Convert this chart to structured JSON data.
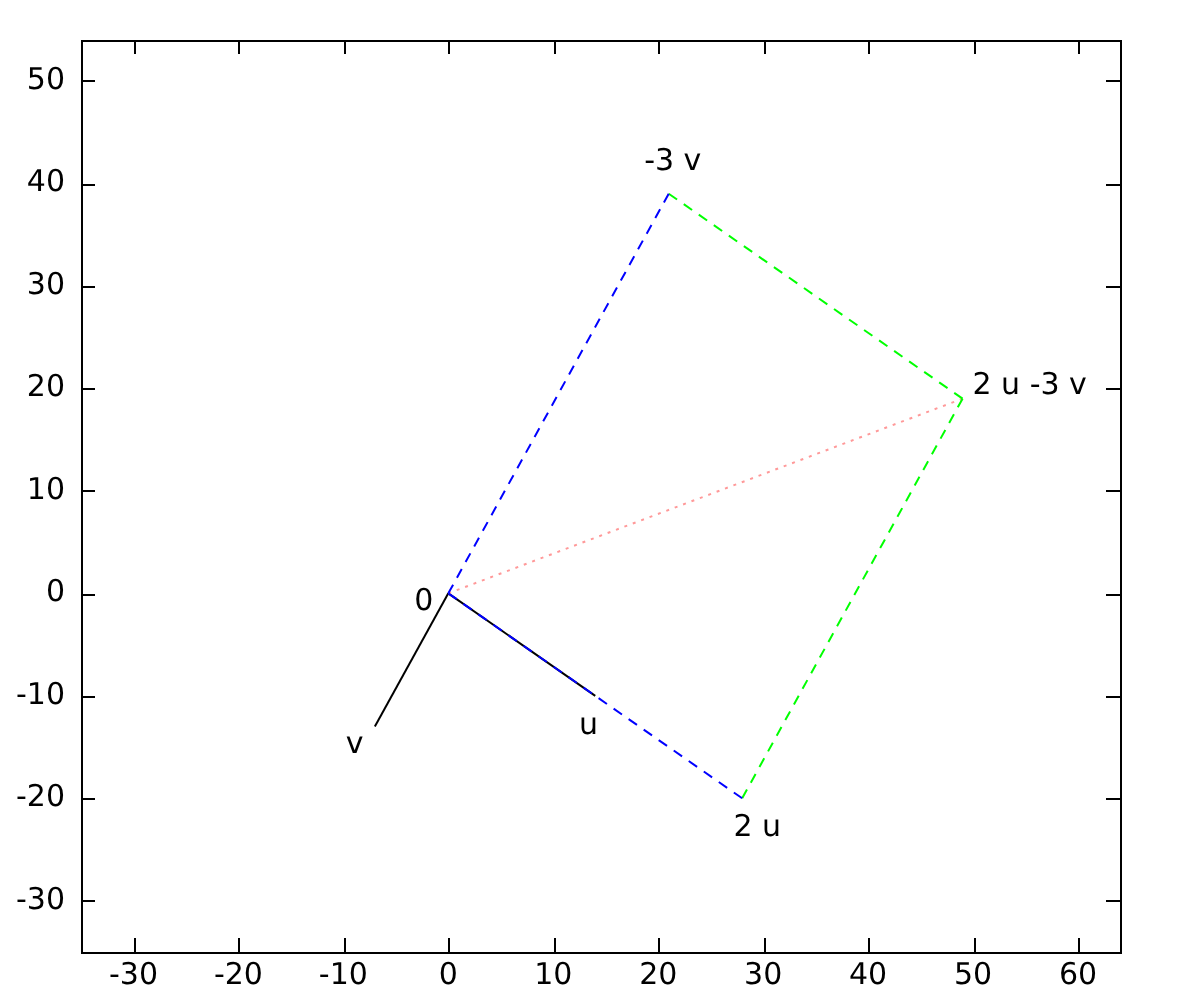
{
  "chart_data": {
    "type": "line",
    "xlim": [
      -35,
      64
    ],
    "ylim": [
      -35,
      54
    ],
    "xticks": [
      -30,
      -20,
      -10,
      0,
      10,
      20,
      30,
      40,
      50,
      60
    ],
    "yticks": [
      -30,
      -20,
      -10,
      0,
      10,
      20,
      30,
      40,
      50
    ],
    "grid": false,
    "legend": false,
    "marker": "none",
    "series": [
      {
        "x": [
          0,
          21
        ],
        "values": [
          0,
          39
        ],
        "color": "#0000ff",
        "line_style": "dashed"
      },
      {
        "x": [
          0,
          28
        ],
        "values": [
          0,
          -20
        ],
        "color": "#0000ff",
        "line_style": "dashed"
      },
      {
        "x": [
          21,
          49
        ],
        "values": [
          39,
          19
        ],
        "color": "#00ff00",
        "line_style": "dashed"
      },
      {
        "x": [
          28,
          49
        ],
        "values": [
          -20,
          19
        ],
        "color": "#00ff00",
        "line_style": "dashed"
      },
      {
        "x": [
          0,
          49
        ],
        "values": [
          0,
          19
        ],
        "color": "#ff9999",
        "line_style": "dotted"
      },
      {
        "x": [
          0,
          14
        ],
        "values": [
          0,
          -10
        ],
        "color": "#000000",
        "line_style": "solid"
      },
      {
        "x": [
          0,
          -7
        ],
        "values": [
          0,
          -13
        ],
        "color": "#000000",
        "line_style": "solid"
      }
    ],
    "annotations": [
      {
        "text": "0",
        "x": 0,
        "y": 0
      },
      {
        "text": "u",
        "x": 14,
        "y": -10
      },
      {
        "text": "v",
        "x": -7,
        "y": -13
      },
      {
        "text": "2 u",
        "x": 28,
        "y": -20
      },
      {
        "text": "-3 v",
        "x": 21,
        "y": 39
      },
      {
        "text": "2 u -3 v",
        "x": 49,
        "y": 19
      }
    ]
  }
}
